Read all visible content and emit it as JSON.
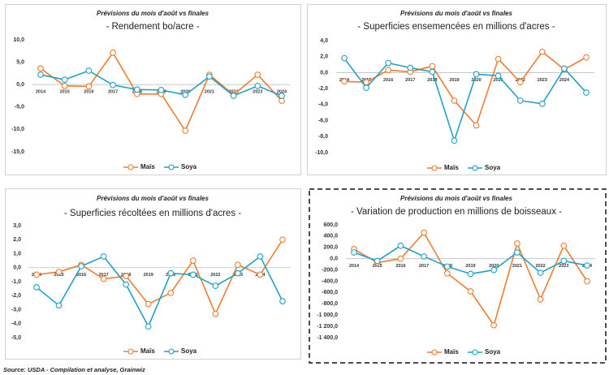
{
  "chart_data": [
    {
      "type": "line",
      "subtitle": "Prévisions du mois d'août vs finales",
      "title": "- Rendement bo/acre -",
      "categories": [
        "2014",
        "2015",
        "2016",
        "2017",
        "2018",
        "2019",
        "2020",
        "2021",
        "2022",
        "2023",
        "2024"
      ],
      "series": [
        {
          "name": "Maïs",
          "color": "#ed7d31",
          "values": [
            3.6,
            -0.3,
            -0.4,
            7.1,
            -2.1,
            -2.1,
            -10.3,
            2.2,
            -2.3,
            2.2,
            -3.6
          ]
        },
        {
          "name": "Soya",
          "color": "#21a0c7",
          "values": [
            2.2,
            1.1,
            3.1,
            -0.1,
            -1.1,
            -1.2,
            -2.3,
            1.8,
            -2.5,
            -0.3,
            -2.5
          ]
        }
      ],
      "ylim": [
        -15,
        10
      ],
      "yticks": [
        {
          "value": -15,
          "label": "-15,0"
        },
        {
          "value": -10,
          "label": "-10,0"
        },
        {
          "value": -5,
          "label": "-5,0"
        },
        {
          "value": 0,
          "label": "0,0"
        },
        {
          "value": 5,
          "label": "5,0"
        },
        {
          "value": 10,
          "label": "10,0"
        }
      ],
      "grid": false,
      "legend": "bottom"
    },
    {
      "type": "line",
      "subtitle": "Prévisions du mois d'août vs finales",
      "title": "- Superficies ensemencées en millions d'acres -",
      "categories": [
        "2014",
        "2015",
        "2016",
        "2017",
        "2018",
        "2019",
        "2020",
        "2021",
        "2022",
        "2023",
        "2024",
        null
      ],
      "series": [
        {
          "name": "Maïs",
          "color": "#ed7d31",
          "values": [
            -1.1,
            -1.2,
            0.3,
            0.1,
            0.8,
            -3.5,
            -6.6,
            1.7,
            -1.2,
            2.6,
            0.4,
            1.9
          ]
        },
        {
          "name": "Soya",
          "color": "#21a0c7",
          "values": [
            1.8,
            -1.9,
            1.2,
            0.6,
            0.1,
            -8.5,
            -0.2,
            -0.4,
            -3.5,
            -3.9,
            0.5,
            -2.5
          ]
        }
      ],
      "ylim": [
        -10,
        4
      ],
      "yticks": [
        {
          "value": -10,
          "label": "-10,0"
        },
        {
          "value": -8,
          "label": "-8,0"
        },
        {
          "value": -6,
          "label": "-6,0"
        },
        {
          "value": -4,
          "label": "-4,0"
        },
        {
          "value": -2,
          "label": "-2,0"
        },
        {
          "value": 0,
          "label": "0,0"
        },
        {
          "value": 2,
          "label": "2,0"
        },
        {
          "value": 4,
          "label": "4,0"
        }
      ],
      "grid": false,
      "legend": "bottom"
    },
    {
      "type": "line",
      "subtitle": "Prévisions du mois d'août vs finales",
      "title": "- Superficies récoltées en millions d'acres -",
      "categories": [
        "2014",
        "2015",
        "2016",
        "2017",
        "2018",
        "2019",
        "2020",
        "2021",
        "2022",
        "2023",
        "2024",
        null
      ],
      "series": [
        {
          "name": "Maïs",
          "color": "#ed7d31",
          "values": [
            -0.5,
            -0.3,
            0.2,
            -0.8,
            -0.6,
            -2.6,
            -1.8,
            0.5,
            -3.3,
            0.2,
            -0.5,
            2.0
          ]
        },
        {
          "name": "Soya",
          "color": "#21a0c7",
          "values": [
            -1.4,
            -2.7,
            0.1,
            0.8,
            -1.2,
            -4.2,
            -0.4,
            -0.5,
            -1.3,
            -0.4,
            0.8,
            -2.4
          ]
        }
      ],
      "ylim": [
        -5,
        3
      ],
      "yticks": [
        {
          "value": -5,
          "label": "-5,0"
        },
        {
          "value": -4,
          "label": "-4,0"
        },
        {
          "value": -3,
          "label": "-3,0"
        },
        {
          "value": -2,
          "label": "-2,0"
        },
        {
          "value": -1,
          "label": "-1,0"
        },
        {
          "value": 0,
          "label": "0,0"
        },
        {
          "value": 1,
          "label": "1,0"
        },
        {
          "value": 2,
          "label": "2,0"
        },
        {
          "value": 3,
          "label": "3,0"
        }
      ],
      "grid": false,
      "legend": "bottom"
    },
    {
      "type": "line",
      "subtitle": "Prévisions du mois d'août vs finales",
      "title": "- Variation de production en millions de boisseaux -",
      "categories": [
        "2014",
        "2015",
        "2016",
        "2017",
        "2018",
        "2019",
        "2020",
        "2021",
        "2022",
        "2023",
        "2024"
      ],
      "series": [
        {
          "name": "Maïs",
          "color": "#ed7d31",
          "values": [
            170,
            -70,
            0,
            460,
            -260,
            -580,
            -1180,
            270,
            -720,
            230,
            -400
          ]
        },
        {
          "name": "Soya",
          "color": "#21a0c7",
          "values": [
            110,
            -40,
            230,
            40,
            -140,
            -270,
            -200,
            110,
            -250,
            -40,
            -120
          ]
        }
      ],
      "ylim": [
        -1400,
        600
      ],
      "yticks": [
        {
          "value": -1400,
          "label": "-1 400,0"
        },
        {
          "value": -1200,
          "label": "-1 200,0"
        },
        {
          "value": -1000,
          "label": "-1 000,0"
        },
        {
          "value": -800,
          "label": "-800,0"
        },
        {
          "value": -600,
          "label": "-600,0"
        },
        {
          "value": -400,
          "label": "-400,0"
        },
        {
          "value": -200,
          "label": "-200,0"
        },
        {
          "value": 0,
          "label": "0,0"
        },
        {
          "value": 200,
          "label": "200,0"
        },
        {
          "value": 400,
          "label": "400,0"
        },
        {
          "value": 600,
          "label": "600,0"
        }
      ],
      "grid": false,
      "legend": "bottom"
    }
  ],
  "source": "Source: USDA - Compilation et analyse, Grainwiz"
}
